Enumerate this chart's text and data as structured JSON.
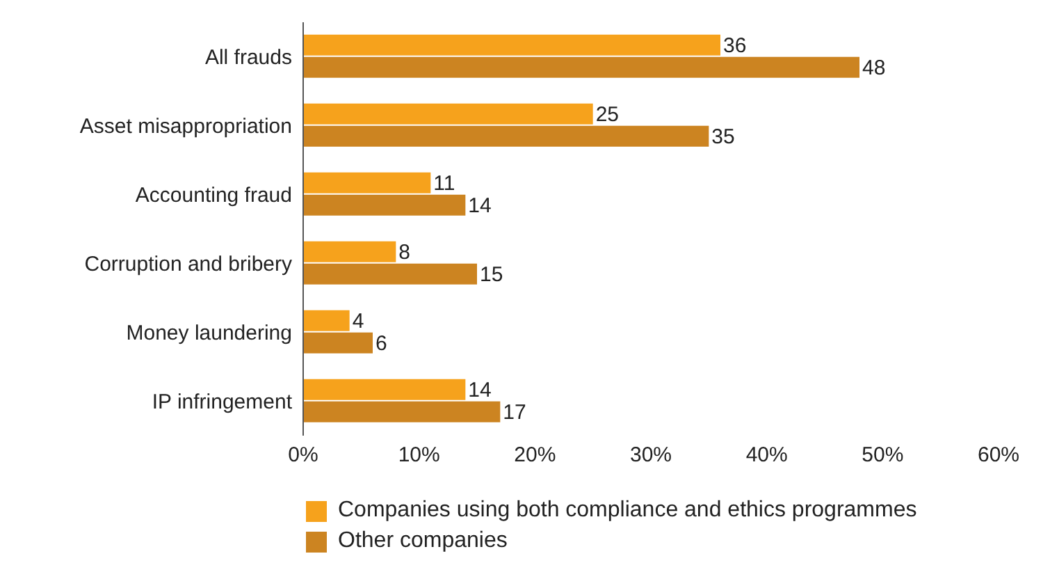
{
  "chart_data": {
    "type": "bar",
    "orientation": "horizontal",
    "categories": [
      "All frauds",
      "Asset misappropriation",
      "Accounting fraud",
      "Corruption and bribery",
      "Money laundering",
      "IP infringement"
    ],
    "series": [
      {
        "name": "Companies using both compliance and ethics programmes",
        "color": "#f6a21c",
        "values": [
          36,
          25,
          11,
          8,
          4,
          14
        ]
      },
      {
        "name": "Other companies",
        "color": "#cc8421",
        "values": [
          48,
          35,
          14,
          15,
          6,
          17
        ]
      }
    ],
    "xlim": [
      0,
      60
    ],
    "xticks": [
      {
        "value": 0,
        "label": "0%"
      },
      {
        "value": 10,
        "label": "10%"
      },
      {
        "value": 20,
        "label": "20%"
      },
      {
        "value": 30,
        "label": "30%"
      },
      {
        "value": 40,
        "label": "40%"
      },
      {
        "value": 50,
        "label": "50%"
      },
      {
        "value": 60,
        "label": "60%"
      }
    ],
    "data_labels": true,
    "grid": false,
    "legend": "bottom"
  }
}
